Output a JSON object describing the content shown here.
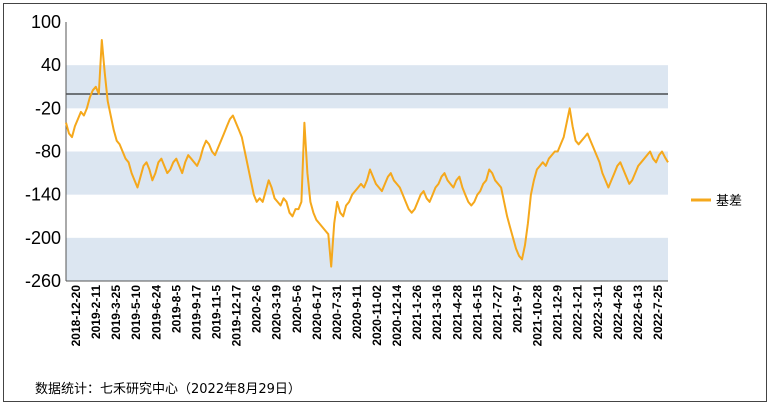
{
  "source_note": "数据统计：七禾研究中心（2022年8月29日）",
  "chart_data": {
    "type": "line",
    "title": "",
    "xlabel": "",
    "ylabel": "",
    "ylim": [
      -260,
      100
    ],
    "y_ticks": [
      "100",
      "40",
      "-20",
      "-80",
      "-140",
      "-200",
      "-260"
    ],
    "y_tick_values": [
      100,
      40,
      -20,
      -80,
      -140,
      -200,
      -260
    ],
    "reference_line": 0,
    "background_bands": [
      [
        -20,
        40
      ],
      [
        -140,
        -80
      ],
      [
        -260,
        -200
      ]
    ],
    "x_tick_labels": [
      "2018-12-20",
      "2019-2-11",
      "2019-3-25",
      "2019-5-10",
      "2019-6-24",
      "2019-8-5",
      "2019-9-17",
      "2019-11-5",
      "2019-12-17",
      "2020-2-6",
      "2020-3-19",
      "2020-5-6",
      "2020-6-17",
      "2020-7-31",
      "2020-9-11",
      "2020-11-02",
      "2020-12-14",
      "2021-1-26",
      "2021-3-16",
      "2021-4-28",
      "2021-6-15",
      "2021-7-27",
      "2021-9-7",
      "2021-10-28",
      "2021-12-9",
      "2022-1-21",
      "2022-3-11",
      "2022-4-26",
      "2022-6-13",
      "2022-7-25"
    ],
    "legend": {
      "position": "right",
      "entries": [
        "基差"
      ]
    },
    "series_color": "#F5A81C",
    "series": [
      {
        "name": "基差",
        "x_start": "2018-12-20",
        "x_end": "2022-8-29",
        "values": [
          -40,
          -55,
          -60,
          -45,
          -35,
          -25,
          -30,
          -20,
          -5,
          5,
          10,
          0,
          75,
          30,
          -10,
          -30,
          -50,
          -65,
          -70,
          -80,
          -90,
          -95,
          -110,
          -120,
          -130,
          -115,
          -100,
          -95,
          -105,
          -120,
          -110,
          -95,
          -90,
          -100,
          -110,
          -105,
          -95,
          -90,
          -100,
          -110,
          -95,
          -85,
          -90,
          -95,
          -100,
          -90,
          -75,
          -65,
          -70,
          -80,
          -85,
          -75,
          -65,
          -55,
          -45,
          -35,
          -30,
          -40,
          -50,
          -60,
          -80,
          -100,
          -120,
          -140,
          -150,
          -145,
          -150,
          -135,
          -120,
          -130,
          -145,
          -150,
          -155,
          -145,
          -150,
          -165,
          -170,
          -160,
          -160,
          -150,
          -40,
          -110,
          -150,
          -165,
          -175,
          -180,
          -185,
          -190,
          -195,
          -240,
          -180,
          -150,
          -165,
          -170,
          -155,
          -150,
          -140,
          -135,
          -130,
          -125,
          -130,
          -120,
          -105,
          -115,
          -125,
          -130,
          -135,
          -125,
          -115,
          -110,
          -120,
          -125,
          -130,
          -140,
          -150,
          -160,
          -165,
          -160,
          -150,
          -140,
          -135,
          -145,
          -150,
          -140,
          -130,
          -125,
          -115,
          -110,
          -120,
          -125,
          -130,
          -120,
          -115,
          -130,
          -140,
          -150,
          -155,
          -150,
          -140,
          -135,
          -125,
          -120,
          -105,
          -110,
          -120,
          -125,
          -130,
          -150,
          -170,
          -185,
          -200,
          -215,
          -225,
          -230,
          -210,
          -180,
          -140,
          -120,
          -105,
          -100,
          -95,
          -100,
          -90,
          -85,
          -80,
          -80,
          -70,
          -60,
          -40,
          -20,
          -45,
          -65,
          -70,
          -65,
          -60,
          -55,
          -65,
          -75,
          -85,
          -95,
          -110,
          -120,
          -130,
          -120,
          -110,
          -100,
          -95,
          -105,
          -115,
          -125,
          -120,
          -110,
          -100,
          -95,
          -90,
          -85,
          -80,
          -90,
          -95,
          -85,
          -80,
          -88,
          -95
        ]
      }
    ]
  }
}
